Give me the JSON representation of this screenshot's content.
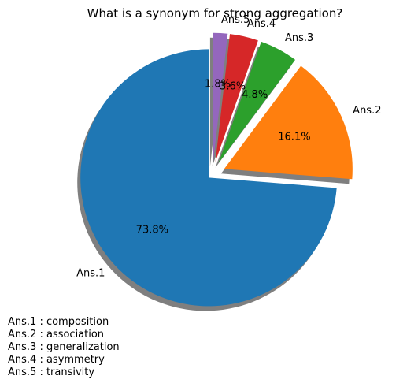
{
  "chart_data": {
    "type": "pie",
    "title": "What is a synonym for strong aggregation?",
    "categories": [
      "Ans.1",
      "Ans.2",
      "Ans.3",
      "Ans.4",
      "Ans.5"
    ],
    "values": [
      73.8,
      16.1,
      4.8,
      3.6,
      1.8
    ],
    "pct_labels": [
      "73.8%",
      "16.1%",
      "4.8%",
      "3.6%",
      "1.8%"
    ],
    "colors": [
      "#1f77b4",
      "#ff7f0e",
      "#2ca02c",
      "#d62728",
      "#9467bd"
    ],
    "exploded_slices": [
      "Ans.1",
      "Ans.2",
      "Ans.3",
      "Ans.4",
      "Ans.5"
    ],
    "start_angle_deg": 90,
    "shadow": true,
    "legend": "bottom-left",
    "legend_items": [
      "Ans.1 : composition",
      "Ans.2 : association",
      "Ans.3 : generalization",
      "Ans.4 : asymmetry",
      "Ans.5 : transivity"
    ]
  }
}
